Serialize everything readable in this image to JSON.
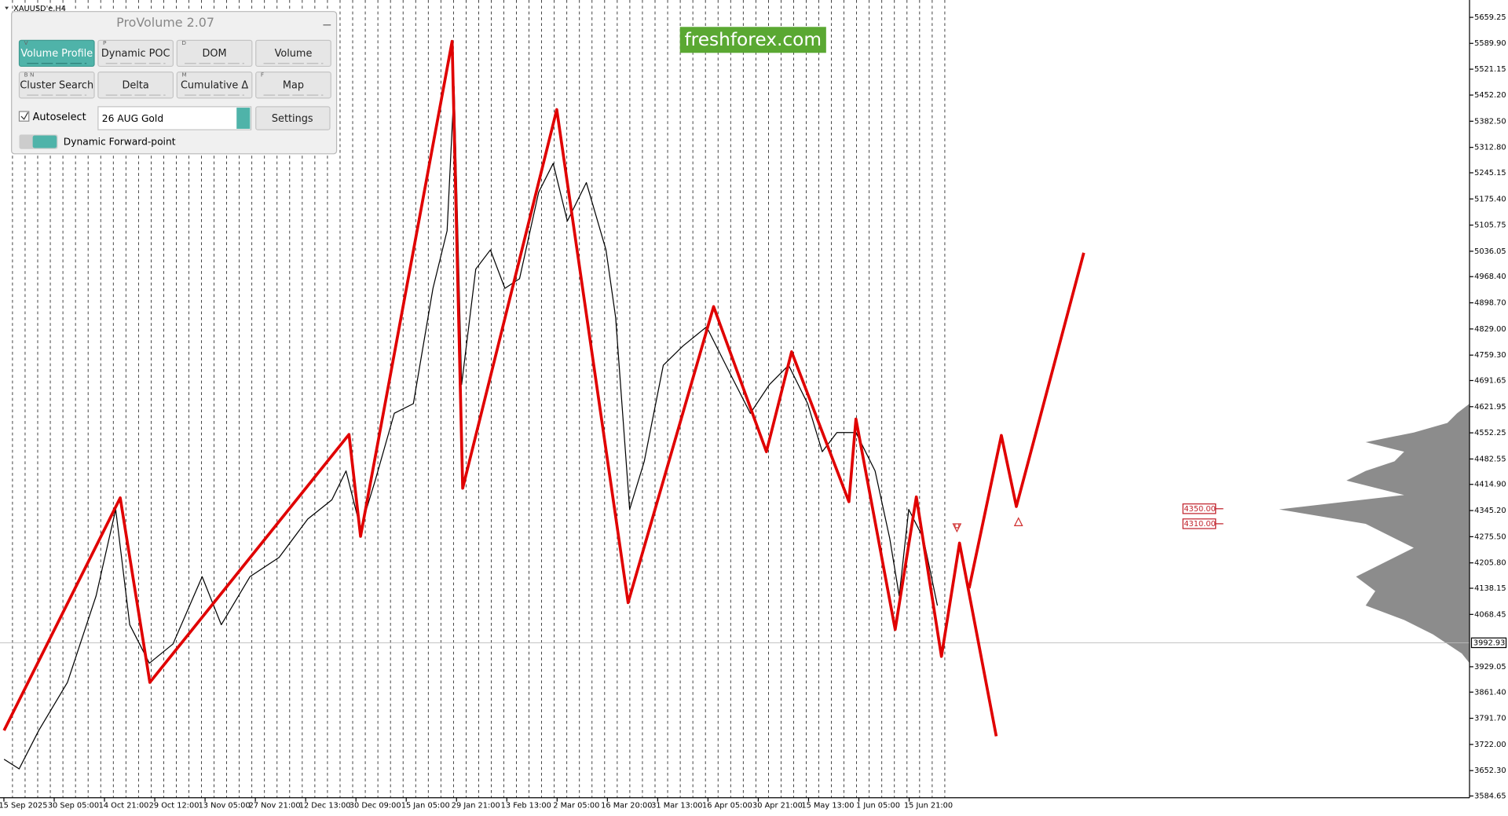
{
  "window_title": "XAUUSD'e,H4",
  "watermark": "freshforex.com",
  "panel": {
    "title": "ProVolume 2.07",
    "buttons": [
      {
        "key": "V",
        "label": "Volume Profile"
      },
      {
        "key": "P",
        "label": "Dynamic POC"
      },
      {
        "key": "D",
        "label": "DOM"
      },
      {
        "key": "",
        "label": "Volume"
      },
      {
        "key": "B N",
        "label": "Cluster Search"
      },
      {
        "key": "",
        "label": "Delta"
      },
      {
        "key": "M",
        "label": "Cumulative Δ"
      },
      {
        "key": "F",
        "label": "Map"
      }
    ],
    "autoselect": "Autoselect",
    "instrument": "26 AUG Gold",
    "settings": "Settings",
    "toggle": "Dynamic Forward-point"
  },
  "chart_data": {
    "type": "line",
    "xlim": [
      -0.46,
      28.76
    ],
    "ylim": [
      3580,
      5685
    ],
    "xticks": [
      {
        "value": 0,
        "label": "15 Sep 2025"
      },
      {
        "value": 1,
        "label": "30 Sep 05:00"
      },
      {
        "value": 2,
        "label": "14 Oct 21:00"
      },
      {
        "value": 3,
        "label": "29 Oct 12:00"
      },
      {
        "value": 4,
        "label": "13 Nov 05:00"
      },
      {
        "value": 5,
        "label": "27 Nov 21:00"
      },
      {
        "value": 6,
        "label": "12 Dec 13:00"
      },
      {
        "value": 7,
        "label": "30 Dec 09:00"
      },
      {
        "value": 8,
        "label": "15 Jan 05:00"
      },
      {
        "value": 9,
        "label": "29 Jan 21:00"
      },
      {
        "value": 10,
        "label": "13 Feb 13:00"
      },
      {
        "value": 11,
        "label": "2 Mar 05:00"
      },
      {
        "value": 12,
        "label": "16 Mar 20:00"
      },
      {
        "value": 13,
        "label": "31 Mar 13:00"
      },
      {
        "value": 14,
        "label": "16 Apr 05:00"
      },
      {
        "value": 15,
        "label": "30 Apr 21:00"
      },
      {
        "value": 16,
        "label": "15 May 13:00"
      },
      {
        "value": 17,
        "label": "1 Jun 05:00"
      },
      {
        "value": 18,
        "label": "15 Jun 21:00"
      }
    ],
    "yticks": [
      {
        "value": 5659.25,
        "label": "5659.25"
      },
      {
        "value": 5589.9,
        "label": "5589.90"
      },
      {
        "value": 5521.15,
        "label": "5521.15"
      },
      {
        "value": 5452.2,
        "label": "5452.20"
      },
      {
        "value": 5382.5,
        "label": "5382.50"
      },
      {
        "value": 5312.8,
        "label": "5312.80"
      },
      {
        "value": 5245.15,
        "label": "5245.15"
      },
      {
        "value": 5175.4,
        "label": "5175.40"
      },
      {
        "value": 5105.75,
        "label": "5105.75"
      },
      {
        "value": 5036.05,
        "label": "5036.05"
      },
      {
        "value": 4968.4,
        "label": "4968.40"
      },
      {
        "value": 4898.7,
        "label": "4898.70"
      },
      {
        "value": 4829,
        "label": "4829.00"
      },
      {
        "value": 4759.3,
        "label": "4759.30"
      },
      {
        "value": 4691.65,
        "label": "4691.65"
      },
      {
        "value": 4621.95,
        "label": "4621.95"
      },
      {
        "value": 4552.25,
        "label": "4552.25"
      },
      {
        "value": 4482.55,
        "label": "4482.55"
      },
      {
        "value": 4414.9,
        "label": "4414.90"
      },
      {
        "value": 4345.2,
        "label": "4345.20"
      },
      {
        "value": 4275.5,
        "label": "4275.50"
      },
      {
        "value": 4205.8,
        "label": "4205.80"
      },
      {
        "value": 4138.15,
        "label": "4138.15"
      },
      {
        "value": 4068.45,
        "label": "4068.45"
      },
      {
        "value": 3929.05,
        "label": "3929.05"
      },
      {
        "value": 3861.4,
        "label": "3861.40"
      },
      {
        "value": 3791.7,
        "label": "3791.70"
      },
      {
        "value": 3722,
        "label": "3722.00"
      },
      {
        "value": 3652.3,
        "label": "3652.30"
      },
      {
        "value": 3584.65,
        "label": "3584.65"
      }
    ],
    "last_price": {
      "value": 3992.93,
      "label": "3992.93"
    },
    "levels": [
      {
        "value": 4350,
        "label": "4350.00",
        "color": "#c0202a"
      },
      {
        "value": 4310,
        "label": "4310.00",
        "color": "#c0202a"
      }
    ],
    "series": [
      {
        "color": "#000000",
        "width": 1,
        "x": [
          -0.38,
          -0.08,
          0.31,
          0.88,
          1.45,
          1.84,
          2.12,
          2.51,
          2.98,
          3.56,
          3.94,
          4.51,
          5.09,
          5.66,
          6.14,
          6.42,
          6.71,
          7.0,
          7.38,
          7.76,
          8.15,
          8.43,
          8.57,
          8.72,
          9.0,
          9.29,
          9.58,
          9.87,
          10.25,
          10.54,
          10.82,
          11.2,
          11.59,
          11.78,
          12.06,
          12.35,
          12.73,
          13.12,
          13.59,
          14.07,
          14.46,
          14.84,
          15.22,
          15.6,
          15.89,
          16.18,
          16.56,
          16.94,
          17.23,
          17.42,
          17.61,
          17.9,
          18.18
        ],
        "values": [
          3682.5,
          3656.8,
          3759.3,
          3887.3,
          4117.8,
          4348.3,
          4041,
          3938.5,
          3989.8,
          4169,
          4041,
          4169,
          4220.2,
          4322.7,
          4373.9,
          4450.7,
          4297,
          4425.1,
          4604.3,
          4630,
          4937.2,
          5090.9,
          5475,
          4681.2,
          4988.5,
          5039.7,
          4937.2,
          4962.9,
          5193.3,
          5270.2,
          5116.5,
          5218.9,
          5039.7,
          4860.4,
          4348.3,
          4476.3,
          4732.4,
          4783.6,
          4834.8,
          4706.8,
          4604.3,
          4681.2,
          4732.4,
          4630,
          4501.9,
          4553.1,
          4553.1,
          4450.7,
          4271.4,
          4117.8,
          4348.3,
          4271.4,
          4092.2
        ]
      },
      {
        "color": "#e00000",
        "width": 3,
        "x": [
          -0.38,
          1.93,
          2.52,
          6.48,
          6.71,
          8.53,
          8.74,
          10.61,
          12.03,
          13.73,
          14.78,
          15.28,
          16.42,
          16.56,
          17.34,
          17.76,
          18.26,
          18.62,
          19.35
        ],
        "values": [
          3759.3,
          4379,
          3887.3,
          4548,
          4276.6,
          5595.4,
          4404.6,
          5413.6,
          4099.9,
          4888.6,
          4501.9,
          4768.2,
          4368.7,
          4589,
          4028.2,
          4381.6,
          3956.5,
          4258.6,
          3743.9
        ]
      },
      {
        "color": "#e00000",
        "width": 3,
        "x": [
          18.81,
          19.45,
          19.75,
          21.09
        ],
        "values": [
          4138.3,
          4545.4,
          4356,
          5032
        ]
      }
    ]
  }
}
